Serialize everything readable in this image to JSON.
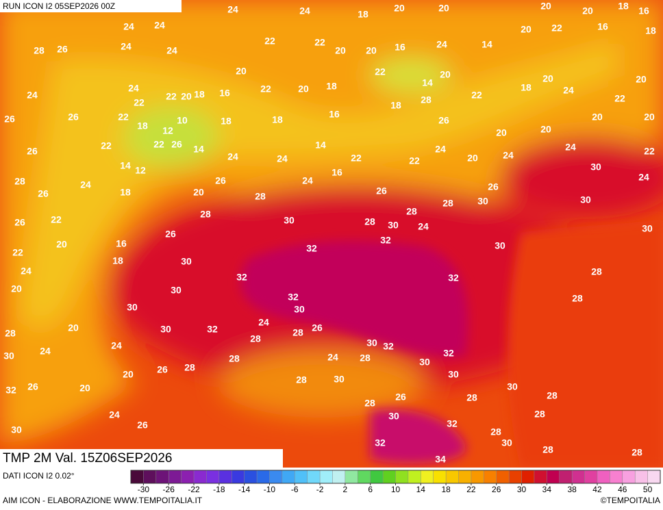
{
  "header": {
    "run": "RUN ICON I2 05SEP2026 00Z"
  },
  "footer": {
    "title": "TMP 2M Val. 15Z06SEP2026",
    "data_source": "DATI ICON I2 0.02°",
    "credit": "AIM ICON - ELABORAZIONE WWW.TEMPOITALIA.IT",
    "copyright": "©TEMPOITALIA"
  },
  "colorbar": {
    "lim": [
      -32,
      52
    ],
    "ticks": [
      -30,
      -26,
      -22,
      -18,
      -14,
      -10,
      -6,
      -2,
      2,
      6,
      10,
      14,
      18,
      22,
      26,
      30,
      34,
      38,
      42,
      46,
      50
    ],
    "colors": [
      "#4a0a3a",
      "#5e0f5c",
      "#6d1378",
      "#7d1a95",
      "#8c20b0",
      "#8a2ad0",
      "#7a30e0",
      "#5a30e0",
      "#3a3ae0",
      "#2a50e0",
      "#2a6ae8",
      "#3a8af0",
      "#40a8f5",
      "#50c0f8",
      "#70d8fa",
      "#a0eefa",
      "#c0f0f0",
      "#90e8a0",
      "#60d860",
      "#40c840",
      "#60d020",
      "#90e020",
      "#c0f020",
      "#f0f020",
      "#f8e000",
      "#f8c800",
      "#f8b000",
      "#f89800",
      "#f88000",
      "#f06000",
      "#e84000",
      "#e02000",
      "#d01030",
      "#c00050",
      "#c02070",
      "#d03090",
      "#e040a0",
      "#f060c0",
      "#f880d0",
      "#f8a0e0",
      "#f8c0e8",
      "#f8d8f0"
    ]
  },
  "map": {
    "labels": [
      24,
      24,
      18,
      20,
      20,
      20,
      20,
      18,
      16,
      24,
      24,
      28,
      26,
      24,
      24,
      22,
      22,
      20,
      20,
      16,
      24,
      14,
      20,
      22,
      16,
      18,
      24,
      24,
      22,
      22,
      20,
      18,
      16,
      20,
      22,
      20,
      18,
      22,
      14,
      20,
      22,
      18,
      20,
      24,
      22,
      20,
      26,
      26,
      22,
      18,
      12,
      10,
      18,
      18,
      16,
      18,
      28,
      26,
      20,
      20,
      20,
      20,
      26,
      22,
      22,
      26,
      14,
      12,
      14,
      24,
      24,
      14,
      22,
      22,
      24,
      20,
      24,
      24,
      22,
      30,
      28,
      26,
      24,
      18,
      20,
      26,
      28,
      24,
      16,
      26,
      28,
      28,
      30,
      26,
      24,
      30,
      26,
      22,
      22,
      20,
      16,
      26,
      28,
      30,
      28,
      30,
      24,
      32,
      32,
      30,
      30,
      24,
      18,
      30,
      32,
      32,
      28,
      20,
      30,
      28,
      30,
      32,
      30,
      24,
      28,
      20,
      30,
      32,
      28,
      28,
      26,
      30,
      24,
      24,
      30,
      32,
      32,
      30,
      28,
      24,
      28,
      28,
      26,
      20,
      32,
      26,
      20,
      28,
      30,
      30,
      30,
      28,
      26,
      28,
      28,
      24,
      30,
      32,
      28,
      30,
      26,
      28,
      32,
      30,
      28,
      34,
      28
    ]
  }
}
